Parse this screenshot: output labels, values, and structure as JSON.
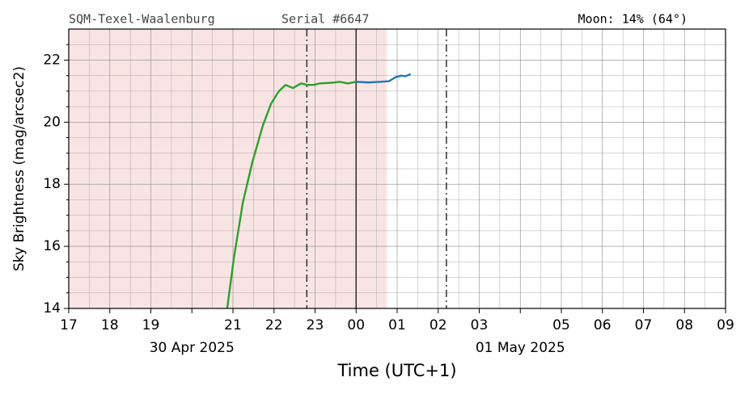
{
  "chart_data": {
    "type": "line",
    "header": {
      "station": "SQM-Texel-Waalenburg",
      "serial": "Serial #6647",
      "moon": "Moon: 14% (64°)"
    },
    "xlabel": "Time (UTC+1)",
    "ylabel": "Sky Brightness (mag/arcsec2)",
    "xlim": [
      17,
      33
    ],
    "ylim": [
      14,
      23
    ],
    "xticks": [
      17,
      18,
      19,
      {
        "value": 20,
        "label": null
      },
      21,
      22,
      23,
      {
        "value": 24,
        "label": "00"
      },
      {
        "value": 25,
        "label": "01"
      },
      {
        "value": 26,
        "label": "02"
      },
      {
        "value": 27,
        "label": "03"
      },
      {
        "value": 28,
        "label": null
      },
      {
        "value": 29,
        "label": "05"
      },
      {
        "value": 30,
        "label": "06"
      },
      {
        "value": 31,
        "label": "07"
      },
      {
        "value": 32,
        "label": "08"
      },
      {
        "value": 33,
        "label": "09"
      }
    ],
    "yticks": [
      14,
      16,
      18,
      20,
      22
    ],
    "minor_xticks": [
      17.5,
      18.5,
      19.5,
      20.5,
      21.5,
      22.5,
      23.5,
      24.5,
      25.5,
      26.5,
      27.5,
      28.5,
      29.5,
      30.5,
      31.5,
      32.5
    ],
    "minor_yticks": [
      14.5,
      15,
      15.5,
      16.5,
      17,
      17.5,
      18.5,
      19,
      19.5,
      20.5,
      21,
      21.5,
      22.5
    ],
    "grid": true,
    "date_labels": [
      {
        "x": 20,
        "text": "30 Apr 2025"
      },
      {
        "x": 28,
        "text": "01 May 2025"
      }
    ],
    "shade": {
      "x": [
        17,
        24.75
      ],
      "color": "#f9e4e4"
    },
    "markers": [
      {
        "x": 22.8,
        "style": "dashdot"
      },
      {
        "x": 24,
        "style": "solid"
      },
      {
        "x": 26.2,
        "style": "dashdot"
      }
    ],
    "series": [
      {
        "color": "#2ca02c",
        "x": [
          20.86,
          21.02,
          21.24,
          21.47,
          21.73,
          21.93,
          22.12,
          22.28,
          22.46,
          22.66,
          22.81,
          22.97,
          23.11,
          23.4,
          23.6,
          23.8,
          24.0
        ],
        "values": [
          14.0,
          15.6,
          17.4,
          18.7,
          19.9,
          20.6,
          21.0,
          21.2,
          21.1,
          21.25,
          21.2,
          21.2,
          21.25,
          21.27,
          21.3,
          21.25,
          21.3
        ]
      },
      {
        "color": "#1f77b4",
        "x": [
          24.0,
          24.3,
          24.6,
          24.8,
          24.96,
          25.1,
          25.2,
          25.33
        ],
        "values": [
          21.3,
          21.28,
          21.3,
          21.32,
          21.45,
          21.5,
          21.48,
          21.55
        ]
      }
    ]
  }
}
